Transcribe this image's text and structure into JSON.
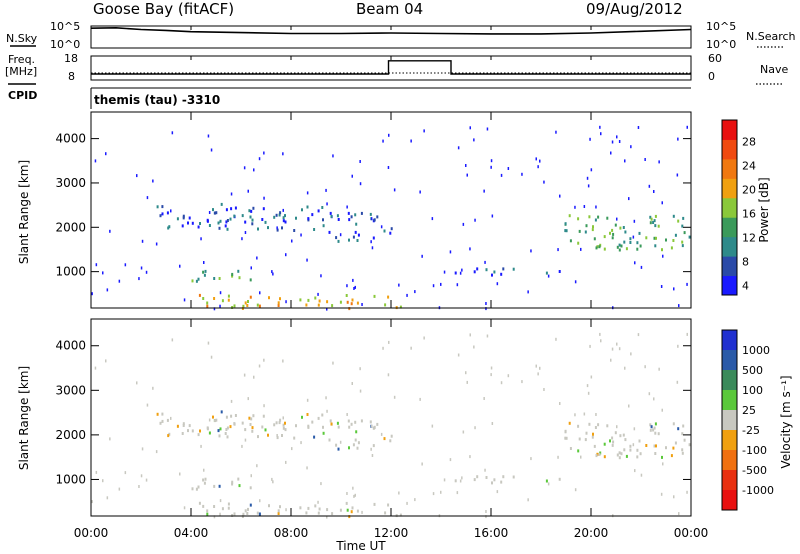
{
  "header": {
    "station": "Goose Bay (fitACF)",
    "beam": "Beam 04",
    "date": "09/Aug/2012"
  },
  "labels": {
    "nsky": "N.Sky",
    "nsearch": "N.Search",
    "freq_line1": "Freq.",
    "freq_line2": "[MHz]",
    "nave": "Nave",
    "cpid": "CPID",
    "cpid_value": "themis (tau) -3310"
  },
  "noise_ticks_left": [
    "10^5",
    "10^0"
  ],
  "noise_ticks_right": [
    "10^5",
    "10^0"
  ],
  "freq_ticks_left": [
    "18",
    "8"
  ],
  "freq_ticks_right": [
    "60",
    "0"
  ],
  "x_ticks": [
    "00:00",
    "04:00",
    "08:00",
    "12:00",
    "16:00",
    "20:00",
    "00:00"
  ],
  "x_label": "Time UT",
  "y_label": "Slant Range [km]",
  "y_ticks": [
    "4000",
    "3000",
    "2000",
    "1000"
  ],
  "power_label": "Power [dB]",
  "power_ticks": [
    "28",
    "24",
    "20",
    "16",
    "12",
    "8",
    "4"
  ],
  "power_colors": [
    "#1a1aff",
    "#2a4aa8",
    "#2e8a8a",
    "#3a9a5a",
    "#8ac83a",
    "#f0a010",
    "#f07810",
    "#f04a10",
    "#e81010"
  ],
  "velocity_label": "Velocity [m s⁻¹]",
  "velocity_ticks": [
    "1000",
    "500",
    "100",
    "25",
    "-25",
    "-100",
    "-500",
    "-1000"
  ],
  "velocity_colors": [
    "#2030d0",
    "#2a5aa8",
    "#3a8a5a",
    "#5ac83a",
    "#c8c8c0",
    "#f0a010",
    "#f07010",
    "#e83010",
    "#e81010"
  ],
  "chart_data": {
    "type": "heatmap",
    "x_range_hours": [
      0,
      24
    ],
    "y_range_km": [
      180,
      4600
    ],
    "noise_sky_trace": [
      [
        0,
        4.5
      ],
      [
        1,
        4.6
      ],
      [
        2,
        4.2
      ],
      [
        3,
        4.0
      ],
      [
        4,
        3.7
      ],
      [
        6,
        3.5
      ],
      [
        8,
        3.3
      ],
      [
        10,
        3.3
      ],
      [
        12,
        3.4
      ],
      [
        14,
        3.3
      ],
      [
        16,
        3.2
      ],
      [
        18,
        3.2
      ],
      [
        20,
        3.4
      ],
      [
        22,
        3.8
      ],
      [
        24,
        4.2
      ]
    ],
    "freq_trace_mhz": [
      [
        0,
        10.5
      ],
      [
        11.9,
        10.5
      ],
      [
        11.9,
        16
      ],
      [
        14.4,
        16
      ],
      [
        14.4,
        10.5
      ],
      [
        24,
        10.5
      ]
    ],
    "power_clusters": [
      {
        "t0": 2.3,
        "t1": 9.5,
        "r0": 1950,
        "r1": 2550,
        "level": "low"
      },
      {
        "t0": 9.5,
        "t1": 12.0,
        "r0": 1650,
        "r1": 2350,
        "level": "low"
      },
      {
        "t0": 4.0,
        "t1": 6.5,
        "r0": 800,
        "r1": 1100,
        "level": "mid"
      },
      {
        "t0": 4.2,
        "t1": 12.5,
        "r0": 200,
        "r1": 500,
        "level": "high"
      },
      {
        "t0": 14.5,
        "t1": 19.0,
        "r0": 950,
        "r1": 1100,
        "level": "low"
      },
      {
        "t0": 18.8,
        "t1": 24.0,
        "r0": 1500,
        "r1": 2300,
        "level": "mid"
      }
    ]
  }
}
